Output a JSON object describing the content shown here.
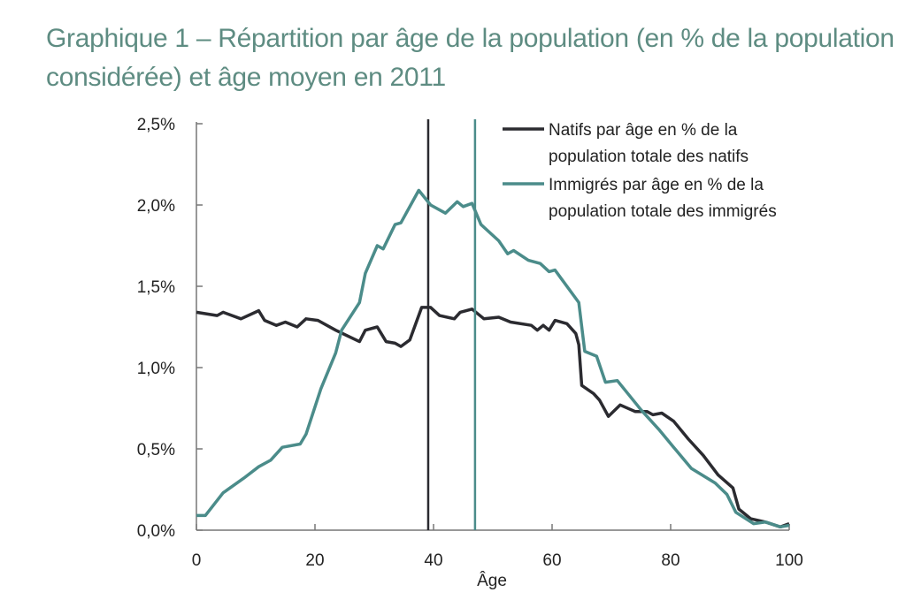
{
  "chart_data": {
    "type": "line",
    "title": "Graphique 1 – Répartition par âge de la population (en % de la population considérée) et âge moyen en 2011",
    "xlabel": "Âge",
    "ylabel": "",
    "xlim": [
      0,
      100
    ],
    "ylim": [
      0,
      2.5
    ],
    "x_ticks": [
      "0",
      "20",
      "40",
      "60",
      "80",
      "100"
    ],
    "y_ticks": [
      "0,0%",
      "0,5%",
      "1,0%",
      "1,5%",
      "2,0%",
      "2,5%"
    ],
    "grid": false,
    "legend_position": "top-right",
    "colors": {
      "natifs": "#2b2b30",
      "immigres": "#4b8c8a",
      "title": "#5e8c82"
    },
    "series": [
      {
        "name": "Natifs par âge en % de la population totale des natifs",
        "legend_lines": [
          "Natifs par âge en % de la",
          "population totale des natifs"
        ],
        "mean_age": 39.1,
        "points": [
          [
            0,
            1.34
          ],
          [
            3.5,
            1.32
          ],
          [
            4.5,
            1.34
          ],
          [
            7.5,
            1.3
          ],
          [
            10.5,
            1.35
          ],
          [
            11.5,
            1.29
          ],
          [
            13.5,
            1.26
          ],
          [
            15,
            1.28
          ],
          [
            17,
            1.25
          ],
          [
            18.5,
            1.3
          ],
          [
            20.5,
            1.29
          ],
          [
            23.5,
            1.23
          ],
          [
            27.5,
            1.16
          ],
          [
            28.5,
            1.23
          ],
          [
            30.5,
            1.25
          ],
          [
            32,
            1.16
          ],
          [
            33.5,
            1.15
          ],
          [
            34.5,
            1.13
          ],
          [
            36,
            1.17
          ],
          [
            38,
            1.37
          ],
          [
            39.5,
            1.37
          ],
          [
            41,
            1.32
          ],
          [
            43.5,
            1.3
          ],
          [
            44.5,
            1.34
          ],
          [
            46.5,
            1.36
          ],
          [
            48.5,
            1.3
          ],
          [
            51,
            1.31
          ],
          [
            53,
            1.28
          ],
          [
            56.5,
            1.26
          ],
          [
            57.5,
            1.23
          ],
          [
            58.5,
            1.26
          ],
          [
            59.5,
            1.23
          ],
          [
            60.5,
            1.29
          ],
          [
            62.5,
            1.27
          ],
          [
            64,
            1.21
          ],
          [
            64.5,
            1.14
          ],
          [
            65,
            0.89
          ],
          [
            67,
            0.84
          ],
          [
            68,
            0.8
          ],
          [
            69.5,
            0.7
          ],
          [
            71.5,
            0.77
          ],
          [
            74,
            0.73
          ],
          [
            76,
            0.73
          ],
          [
            77,
            0.71
          ],
          [
            78.5,
            0.72
          ],
          [
            80.5,
            0.67
          ],
          [
            83,
            0.56
          ],
          [
            85.5,
            0.46
          ],
          [
            88,
            0.34
          ],
          [
            90.5,
            0.26
          ],
          [
            91.5,
            0.13
          ],
          [
            93.5,
            0.07
          ],
          [
            96,
            0.05
          ],
          [
            98.5,
            0.02
          ],
          [
            100,
            0.04
          ]
        ]
      },
      {
        "name": "Immigrés par âge en % de la population totale des immigrés",
        "legend_lines": [
          "Immigrés par âge en % de la",
          "population totale des immigrés"
        ],
        "mean_age": 47.0,
        "points": [
          [
            0,
            0.09
          ],
          [
            1.5,
            0.09
          ],
          [
            4.5,
            0.23
          ],
          [
            8,
            0.32
          ],
          [
            10.5,
            0.39
          ],
          [
            12.5,
            0.43
          ],
          [
            14.5,
            0.51
          ],
          [
            17.5,
            0.53
          ],
          [
            18.5,
            0.59
          ],
          [
            21,
            0.87
          ],
          [
            23.5,
            1.09
          ],
          [
            24.5,
            1.23
          ],
          [
            27.5,
            1.4
          ],
          [
            28.5,
            1.58
          ],
          [
            30.5,
            1.75
          ],
          [
            31.5,
            1.73
          ],
          [
            33.5,
            1.88
          ],
          [
            34.5,
            1.89
          ],
          [
            37.5,
            2.09
          ],
          [
            39.5,
            2.0
          ],
          [
            42,
            1.95
          ],
          [
            44,
            2.02
          ],
          [
            45,
            1.99
          ],
          [
            46.5,
            2.01
          ],
          [
            48,
            1.88
          ],
          [
            51,
            1.78
          ],
          [
            52.5,
            1.7
          ],
          [
            53.5,
            1.72
          ],
          [
            56,
            1.66
          ],
          [
            58,
            1.64
          ],
          [
            59.5,
            1.59
          ],
          [
            60.5,
            1.6
          ],
          [
            61.5,
            1.55
          ],
          [
            64.5,
            1.4
          ],
          [
            65.5,
            1.1
          ],
          [
            67.5,
            1.07
          ],
          [
            69,
            0.91
          ],
          [
            71,
            0.92
          ],
          [
            75,
            0.74
          ],
          [
            78,
            0.62
          ],
          [
            80.5,
            0.51
          ],
          [
            83.5,
            0.38
          ],
          [
            87.5,
            0.29
          ],
          [
            89.5,
            0.22
          ],
          [
            91,
            0.11
          ],
          [
            94,
            0.04
          ],
          [
            96,
            0.05
          ],
          [
            98.5,
            0.02
          ],
          [
            100,
            0.03
          ]
        ]
      }
    ]
  }
}
